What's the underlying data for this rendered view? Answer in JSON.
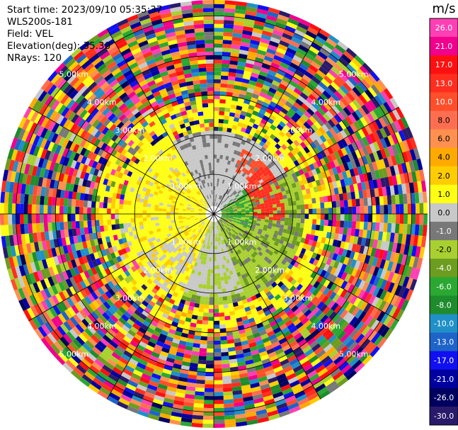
{
  "header": {
    "start_time": "Start time: 2023/09/10 05:35:37",
    "instrument": "WLS200s-181",
    "field": "Field: VEL",
    "elevation": "Elevation(deg): 35.30",
    "nrays": "NRays: 120"
  },
  "chart_data": {
    "type": "heatmap",
    "projection": "polar-ppi",
    "field": "VEL",
    "units": "m/s",
    "nrays": 120,
    "elevation_deg": 35.3,
    "range_max_km": 5.4,
    "range_rings_km": [
      1,
      2,
      3,
      4,
      5
    ],
    "range_ring_labels": [
      "1.00km",
      "2.00km",
      "3.00km",
      "4.00km",
      "5.00km"
    ],
    "colorbar": {
      "title": "m/s",
      "tick_labels": [
        "26.0",
        "21.0",
        "17.0",
        "13.0",
        "10.0",
        "8.0",
        "6.0",
        "4.0",
        "2.0",
        "1.0",
        "0.0",
        "-1.0",
        "-2.0",
        "-4.0",
        "-6.0",
        "-8.0",
        "-10.0",
        "-13.0",
        "-17.0",
        "-21.0",
        "-26.0",
        "-30.0"
      ],
      "colors": [
        "#ff3fb4",
        "#f0008c",
        "#ff1010",
        "#ff2e1e",
        "#ff4e2a",
        "#ff6e50",
        "#ff9050",
        "#ffaa00",
        "#ffcc00",
        "#ffff14",
        "#c8c8c8",
        "#787878",
        "#a8d030",
        "#6c9c20",
        "#2aa832",
        "#1e8c2c",
        "#2090c8",
        "#1e64c8",
        "#1010f0",
        "#0000a0",
        "#000060",
        "#2a1a6a"
      ]
    },
    "regions": [
      {
        "sector": "west",
        "range_km": [
          0.2,
          2.2
        ],
        "value_ms": 2.0,
        "note": "yellow band"
      },
      {
        "sector": "east",
        "range_km": [
          0.2,
          2.2
        ],
        "value_ms": -2.0,
        "note": "olive band"
      },
      {
        "sector": "north",
        "range_km": [
          0.2,
          2.0
        ],
        "value_ms": 0.0,
        "note": "gray band"
      },
      {
        "sector": "northeast",
        "range_km": [
          1.0,
          1.8
        ],
        "value_ms": 13.0,
        "note": "red patch"
      },
      {
        "sector": "all",
        "range_km": [
          2.3,
          5.4
        ],
        "value_ms": "noise"
      }
    ]
  }
}
